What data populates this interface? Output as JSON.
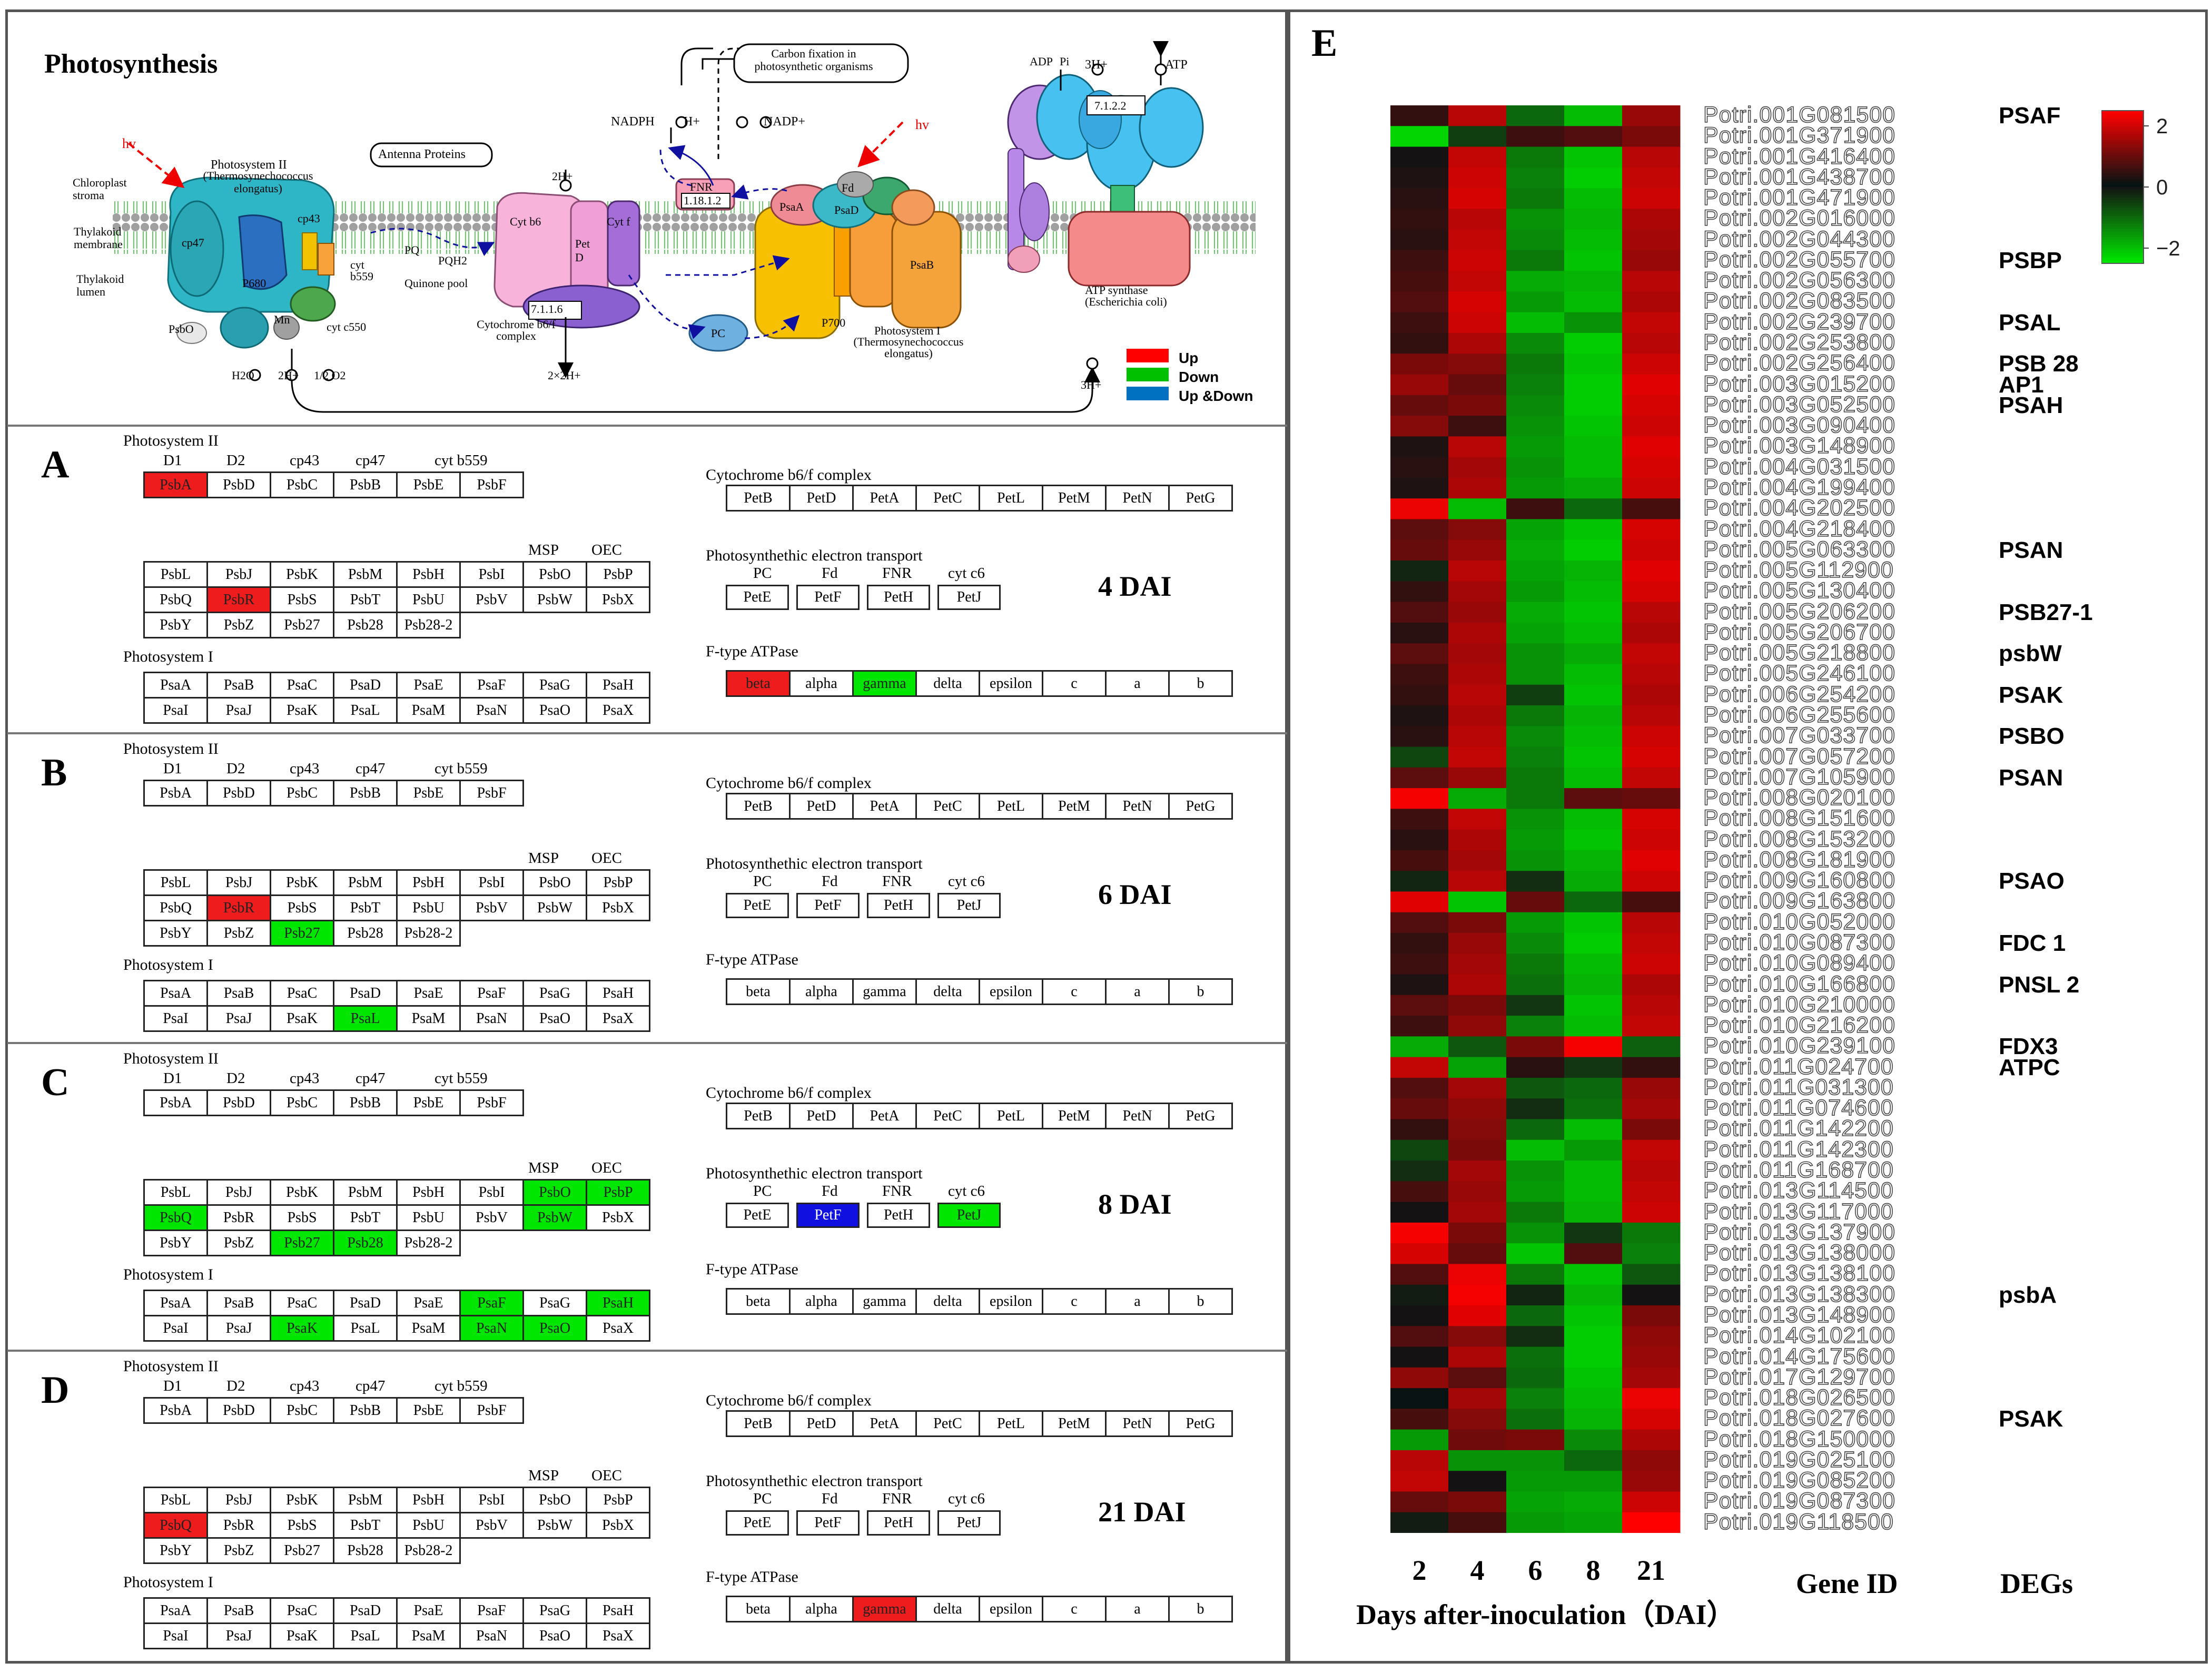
{
  "pathway": {
    "title": "Photosynthesis",
    "labels": {
      "carbon": "Carbon fixation in photosynthetic organisms",
      "nadph": "NADPH",
      "hplus_nadp": "H+",
      "nadp": "NADP+",
      "adp": "ADP",
      "pi": "Pi",
      "h3": "3H+",
      "atp": "ATP",
      "hv1": "hv",
      "hv2": "hv",
      "antenna": "Antenna Proteins",
      "ps2": "Photosystem II",
      "ps2_sub": "(Thermosynechococcus elongatus)",
      "stroma": "Chloroplast stroma",
      "thylakoid_membrane": "Thylakoid membrane",
      "lumen": "Thylakoid lumen",
      "psbo": "PsbO",
      "mn": "Mn",
      "h2o": "H2O",
      "h2": "2H+",
      "o2": "1/2 O2",
      "quinone": "Quinone pool",
      "pq": "PQ",
      "pqh2": "PQH2",
      "cytb6": "Cyt b6",
      "pet": "Pet D",
      "cytf": "Cyt f",
      "ec7116": "7.1.1.6",
      "cytb6f": "Cytochrome b6/f complex",
      "h2_top": "2H+",
      "h2x2": "2×2H+",
      "fnr": "FNR",
      "ec11812": "1.18.1.2",
      "fd": "Fd",
      "psaD": "PsaD",
      "psaA": "PsaA",
      "psaB": "PsaB",
      "p700": "P700",
      "pc": "PC",
      "ps1": "Photosystem I",
      "ps1_sub": "(Thermosynechococcus elongatus)",
      "atpsynth": "ATP synthase (Escherichia coli)",
      "ec7122": "7.1.2.2",
      "h3_bottom": "3H+",
      "cytc550": "cyt c550",
      "cytb559": "cyt b559",
      "cp43": "cp43",
      "cp47": "cp47",
      "p680": "P680"
    },
    "legend": [
      {
        "label": "Up",
        "color": "#ff0000"
      },
      {
        "label": "Down",
        "color": "#00c000"
      },
      {
        "label": "Up &Down",
        "color": "#0070c0"
      }
    ]
  },
  "colors": {
    "up": "#ee1c1c",
    "down": "#00e600",
    "both": "#1010e0"
  },
  "section_titles": {
    "ps2": "Photosystem II",
    "ps1": "Photosystem I",
    "cyt": "Cytochrome b6/f complex",
    "pet": "Photosynthethic electron transport",
    "atp": "F-type ATPase"
  },
  "headers": {
    "ps2_top": [
      "D1",
      "D2",
      "cp43",
      "cp47",
      "cyt b559"
    ],
    "ps2_mid": [
      "MSP",
      "OEC"
    ],
    "pet": [
      "PC",
      "Fd",
      "FNR",
      "cyt c6"
    ]
  },
  "genes": {
    "ps2_row1": [
      "PsbA",
      "PsbD",
      "PsbC",
      "PsbB",
      "PsbE",
      "PsbF"
    ],
    "ps2_grid": [
      [
        "PsbL",
        "PsbJ",
        "PsbK",
        "PsbM",
        "PsbH",
        "PsbI",
        "PsbO",
        "PsbP"
      ],
      [
        "PsbQ",
        "PsbR",
        "PsbS",
        "PsbT",
        "PsbU",
        "PsbV",
        "PsbW",
        "PsbX"
      ],
      [
        "PsbY",
        "PsbZ",
        "Psb27",
        "Psb28",
        "Psb28-2"
      ]
    ],
    "ps1_grid": [
      [
        "PsaA",
        "PsaB",
        "PsaC",
        "PsaD",
        "PsaE",
        "PsaF",
        "PsaG",
        "PsaH"
      ],
      [
        "PsaI",
        "PsaJ",
        "PsaK",
        "PsaL",
        "PsaM",
        "PsaN",
        "PsaO",
        "PsaX"
      ]
    ],
    "cyt": [
      "PetB",
      "PetD",
      "PetA",
      "PetC",
      "PetL",
      "PetM",
      "PetN",
      "PetG"
    ],
    "pet": [
      "PetE",
      "PetF",
      "PetH",
      "PetJ"
    ],
    "atp": [
      "beta",
      "alpha",
      "gamma",
      "delta",
      "epsilon",
      "c",
      "a",
      "b"
    ]
  },
  "panels": [
    {
      "letter": "A",
      "dai": "4 DAI",
      "ps2": {
        "PsbA": "up",
        "PsbR": "up"
      },
      "ps1": {},
      "pet": {},
      "atp": {
        "beta": "up",
        "gamma": "down"
      }
    },
    {
      "letter": "B",
      "dai": "6 DAI",
      "ps2": {
        "PsbR": "up",
        "Psb27": "down"
      },
      "ps1": {
        "PsaL": "down"
      },
      "pet": {},
      "atp": {}
    },
    {
      "letter": "C",
      "dai": "8 DAI",
      "ps2": {
        "PsbO": "down",
        "PsbP": "down",
        "PsbQ": "down",
        "PsbW": "down",
        "Psb27": "down",
        "Psb28": "down"
      },
      "ps1": {
        "PsaF": "down",
        "PsaH": "down",
        "PsaK": "down",
        "PsaN": "down",
        "PsaO": "down"
      },
      "pet": {
        "PetF": "both",
        "PetJ": "down"
      },
      "atp": {}
    },
    {
      "letter": "D",
      "dai": "21 DAI",
      "ps2": {
        "PsbQ": "up"
      },
      "ps1": {},
      "pet": {},
      "atp": {
        "gamma": "up"
      }
    }
  ],
  "heatmap": {
    "letter": "E",
    "x_labels": [
      "2",
      "4",
      "6",
      "8",
      "21"
    ],
    "x_title": "Days after-inoculation（DAI）",
    "gene_id_title": "Gene ID",
    "degs_title": "DEGs",
    "colorbar": {
      "ticks": [
        "2",
        "0",
        "−2"
      ],
      "range": [
        -2.5,
        2.5
      ]
    },
    "gene_ids": [
      "Potri.001G081500",
      "Potri.001G371900",
      "Potri.001G416400",
      "Potri.001G438700",
      "Potri.001G471900",
      "Potri.002G016000",
      "Potri.002G044300",
      "Potri.002G055700",
      "Potri.002G056300",
      "Potri.002G083500",
      "Potri.002G239700",
      "Potri.002G253800",
      "Potri.002G256400",
      "Potri.003G015200",
      "Potri.003G052500",
      "Potri.003G090400",
      "Potri.003G148900",
      "Potri.004G031500",
      "Potri.004G199400",
      "Potri.004G202500",
      "Potri.004G218400",
      "Potri.005G063300",
      "Potri.005G112900",
      "Potri.005G130400",
      "Potri.005G206200",
      "Potri.005G206700",
      "Potri.005G218800",
      "Potri.005G246100",
      "Potri.006G254200",
      "Potri.006G255600",
      "Potri.007G033700",
      "Potri.007G057200",
      "Potri.007G105900",
      "Potri.008G020100",
      "Potri.008G151600",
      "Potri.008G153200",
      "Potri.008G181900",
      "Potri.009G160800",
      "Potri.009G163800",
      "Potri.010G052000",
      "Potri.010G087300",
      "Potri.010G089400",
      "Potri.010G166800",
      "Potri.010G210000",
      "Potri.010G216200",
      "Potri.010G239100",
      "Potri.011G024700",
      "Potri.011G031300",
      "Potri.011G074600",
      "Potri.011G142200",
      "Potri.011G142300",
      "Potri.011G168700",
      "Potri.013G114500",
      "Potri.013G117000",
      "Potri.013G137900",
      "Potri.013G138000",
      "Potri.013G138100",
      "Potri.013G138300",
      "Potri.013G148900",
      "Potri.014G102100",
      "Potri.014G175600",
      "Potri.017G129700",
      "Potri.018G026500",
      "Potri.018G027600",
      "Potri.018G150000",
      "Potri.019G025100",
      "Potri.019G085200",
      "Potri.019G087300",
      "Potri.019G118500"
    ],
    "degs": [
      {
        "row": 0,
        "label": "PSAF"
      },
      {
        "row": 7,
        "label": "PSBP"
      },
      {
        "row": 10,
        "label": "PSAL"
      },
      {
        "row": 12,
        "label": "PSB 28"
      },
      {
        "row": 13,
        "label": "AP1"
      },
      {
        "row": 14,
        "label": "PSAH"
      },
      {
        "row": 21,
        "label": "PSAN"
      },
      {
        "row": 24,
        "label": "PSB27-1"
      },
      {
        "row": 26,
        "label": "psbW"
      },
      {
        "row": 28,
        "label": "PSAK"
      },
      {
        "row": 30,
        "label": "PSBO"
      },
      {
        "row": 32,
        "label": "PSAN"
      },
      {
        "row": 37,
        "label": "PSAO"
      },
      {
        "row": 40,
        "label": "FDC 1"
      },
      {
        "row": 42,
        "label": "PNSL 2"
      },
      {
        "row": 45,
        "label": "FDX3"
      },
      {
        "row": 46,
        "label": "ATPC"
      },
      {
        "row": 57,
        "label": "psbA"
      },
      {
        "row": 63,
        "label": "PSAK"
      }
    ],
    "values": [
      [
        0.5,
        1.8,
        -1.0,
        -2.0,
        1.5
      ],
      [
        -2.3,
        -0.5,
        0.6,
        0.8,
        1.2
      ],
      [
        0.2,
        1.9,
        -1.2,
        -2.1,
        1.8
      ],
      [
        0.3,
        2.0,
        -1.3,
        -2.2,
        1.9
      ],
      [
        0.4,
        2.1,
        -1.2,
        -2.0,
        2.0
      ],
      [
        0.5,
        1.8,
        -1.5,
        -1.9,
        1.7
      ],
      [
        0.4,
        1.9,
        -1.4,
        -2.0,
        1.6
      ],
      [
        0.6,
        2.0,
        -1.2,
        -2.1,
        1.5
      ],
      [
        0.7,
        1.9,
        -1.8,
        -1.9,
        1.8
      ],
      [
        0.8,
        2.1,
        -1.6,
        -2.0,
        1.7
      ],
      [
        0.6,
        2.0,
        -2.0,
        -1.5,
        1.9
      ],
      [
        0.5,
        1.7,
        -1.4,
        -2.2,
        1.8
      ],
      [
        1.2,
        1.3,
        -1.2,
        -2.1,
        2.0
      ],
      [
        1.5,
        1.0,
        -1.3,
        -2.2,
        2.2
      ],
      [
        1.0,
        1.2,
        -1.4,
        -2.2,
        2.1
      ],
      [
        1.3,
        0.6,
        -1.5,
        -2.1,
        2.0
      ],
      [
        0.3,
        1.8,
        -1.6,
        -2.0,
        2.2
      ],
      [
        0.4,
        1.6,
        -1.5,
        -2.0,
        2.1
      ],
      [
        0.3,
        1.7,
        -1.6,
        -1.8,
        2.0
      ],
      [
        2.3,
        -2.0,
        0.6,
        -1.0,
        0.7
      ],
      [
        0.9,
        1.3,
        -1.7,
        -2.1,
        2.1
      ],
      [
        1.0,
        1.5,
        -1.8,
        -2.2,
        2.0
      ],
      [
        -0.2,
        1.8,
        -1.7,
        -1.9,
        2.2
      ],
      [
        0.5,
        1.6,
        -1.6,
        -2.0,
        2.1
      ],
      [
        0.8,
        1.5,
        -1.8,
        -2.1,
        1.8
      ],
      [
        0.4,
        1.7,
        -1.7,
        -2.0,
        1.7
      ],
      [
        0.9,
        1.6,
        -1.5,
        -1.8,
        1.9
      ],
      [
        0.6,
        1.7,
        -1.5,
        -2.0,
        1.8
      ],
      [
        0.5,
        1.8,
        -0.5,
        -2.1,
        1.7
      ],
      [
        0.3,
        1.7,
        -1.2,
        -1.9,
        1.8
      ],
      [
        0.4,
        1.8,
        -1.4,
        -2.0,
        2.0
      ],
      [
        -0.6,
        1.9,
        -1.3,
        -2.1,
        2.1
      ],
      [
        0.9,
        1.5,
        -1.2,
        -2.0,
        1.9
      ],
      [
        2.4,
        -1.8,
        -1.2,
        0.9,
        1.0
      ],
      [
        0.6,
        1.9,
        -1.5,
        -2.0,
        2.1
      ],
      [
        0.4,
        1.7,
        -1.6,
        -2.1,
        2.0
      ],
      [
        0.7,
        1.6,
        -1.5,
        -1.9,
        2.2
      ],
      [
        -0.2,
        1.8,
        -0.3,
        -1.8,
        2.0
      ],
      [
        2.2,
        -2.1,
        1.0,
        -1.0,
        0.7
      ],
      [
        0.8,
        1.2,
        -1.6,
        -2.1,
        1.8
      ],
      [
        0.5,
        1.5,
        -1.4,
        -2.2,
        1.9
      ],
      [
        0.6,
        1.6,
        -1.2,
        -2.0,
        2.0
      ],
      [
        0.3,
        1.7,
        -1.1,
        -1.9,
        1.7
      ],
      [
        0.9,
        1.2,
        -0.4,
        -2.1,
        1.8
      ],
      [
        0.6,
        1.4,
        -1.3,
        -2.0,
        1.9
      ],
      [
        -1.8,
        -0.8,
        1.2,
        2.4,
        -0.9
      ],
      [
        1.9,
        -1.7,
        0.4,
        -0.4,
        0.5
      ],
      [
        0.8,
        1.6,
        -0.8,
        -1.0,
        1.5
      ],
      [
        1.0,
        1.4,
        -0.3,
        -1.1,
        1.6
      ],
      [
        0.5,
        1.3,
        -1.0,
        -2.0,
        1.2
      ],
      [
        -0.6,
        1.2,
        -2.0,
        -1.6,
        1.9
      ],
      [
        -0.3,
        1.6,
        -1.5,
        -2.0,
        1.8
      ],
      [
        0.7,
        1.5,
        -1.6,
        -2.0,
        1.9
      ],
      [
        0.2,
        1.6,
        -1.2,
        -1.9,
        2.0
      ],
      [
        2.4,
        1.2,
        -1.5,
        -0.4,
        -1.2
      ],
      [
        2.1,
        1.0,
        -2.1,
        0.8,
        -1.3
      ],
      [
        0.8,
        2.3,
        -1.2,
        -2.1,
        -0.8
      ],
      [
        -0.1,
        2.4,
        -0.2,
        -1.9,
        0.2
      ],
      [
        0.2,
        2.2,
        -1.0,
        -2.1,
        1.2
      ],
      [
        0.8,
        1.3,
        -0.3,
        -2.2,
        1.4
      ],
      [
        0.2,
        1.7,
        -1.1,
        -2.2,
        1.5
      ],
      [
        1.4,
        0.9,
        -1.0,
        -2.1,
        1.6
      ],
      [
        0.1,
        1.6,
        -1.3,
        -2.0,
        2.3
      ],
      [
        0.7,
        1.3,
        -1.1,
        -1.9,
        2.1
      ],
      [
        -1.6,
        1.1,
        1.2,
        -1.4,
        1.7
      ],
      [
        1.8,
        -1.5,
        -1.5,
        -1.0,
        1.4
      ],
      [
        1.9,
        0.2,
        -1.6,
        -1.6,
        1.5
      ],
      [
        1.0,
        1.2,
        -1.7,
        -1.8,
        2.0
      ],
      [
        -0.1,
        0.7,
        -1.6,
        -1.7,
        2.5
      ]
    ]
  }
}
